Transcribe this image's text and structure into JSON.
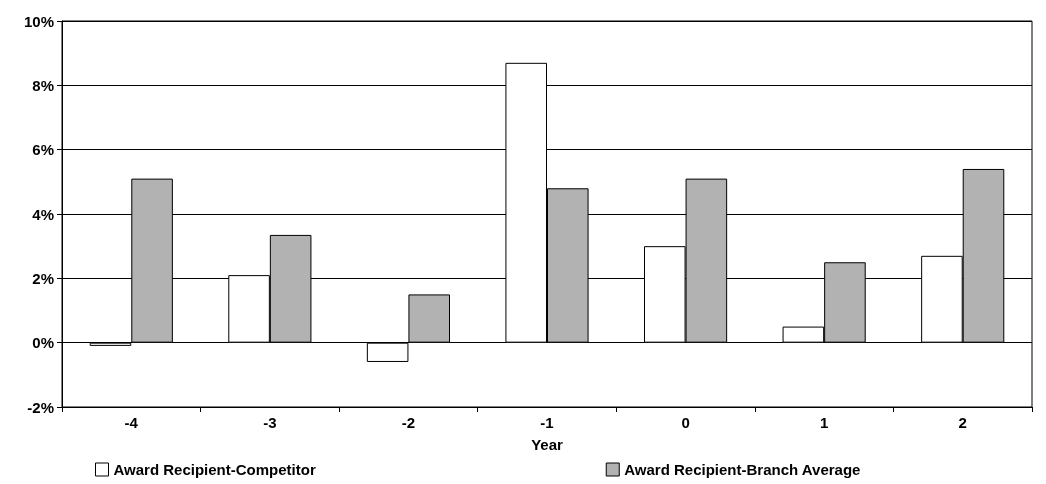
{
  "chart_data": {
    "type": "bar",
    "xlabel": "Year",
    "categories": [
      "-4",
      "-3",
      "-2",
      "-1",
      "0",
      "1",
      "2"
    ],
    "series": [
      {
        "name": "Award Recipient-Competitor",
        "color": "#ffffff",
        "values": [
          -0.1,
          2.1,
          -0.6,
          8.7,
          3.0,
          0.5,
          2.7
        ]
      },
      {
        "name": "Award Recipient-Branch Average",
        "color": "#b2b2b2",
        "values": [
          5.1,
          3.35,
          1.5,
          4.8,
          5.1,
          2.5,
          5.4
        ]
      }
    ],
    "ylim": [
      -2,
      10
    ],
    "yticks": [
      {
        "value": -2,
        "label": "-2%"
      },
      {
        "value": 0,
        "label": "0%"
      },
      {
        "value": 2,
        "label": "2%"
      },
      {
        "value": 4,
        "label": "4%"
      },
      {
        "value": 6,
        "label": "6%"
      },
      {
        "value": 8,
        "label": "8%"
      },
      {
        "value": 10,
        "label": "10%"
      }
    ],
    "grid": "y",
    "legend": "bottom"
  }
}
